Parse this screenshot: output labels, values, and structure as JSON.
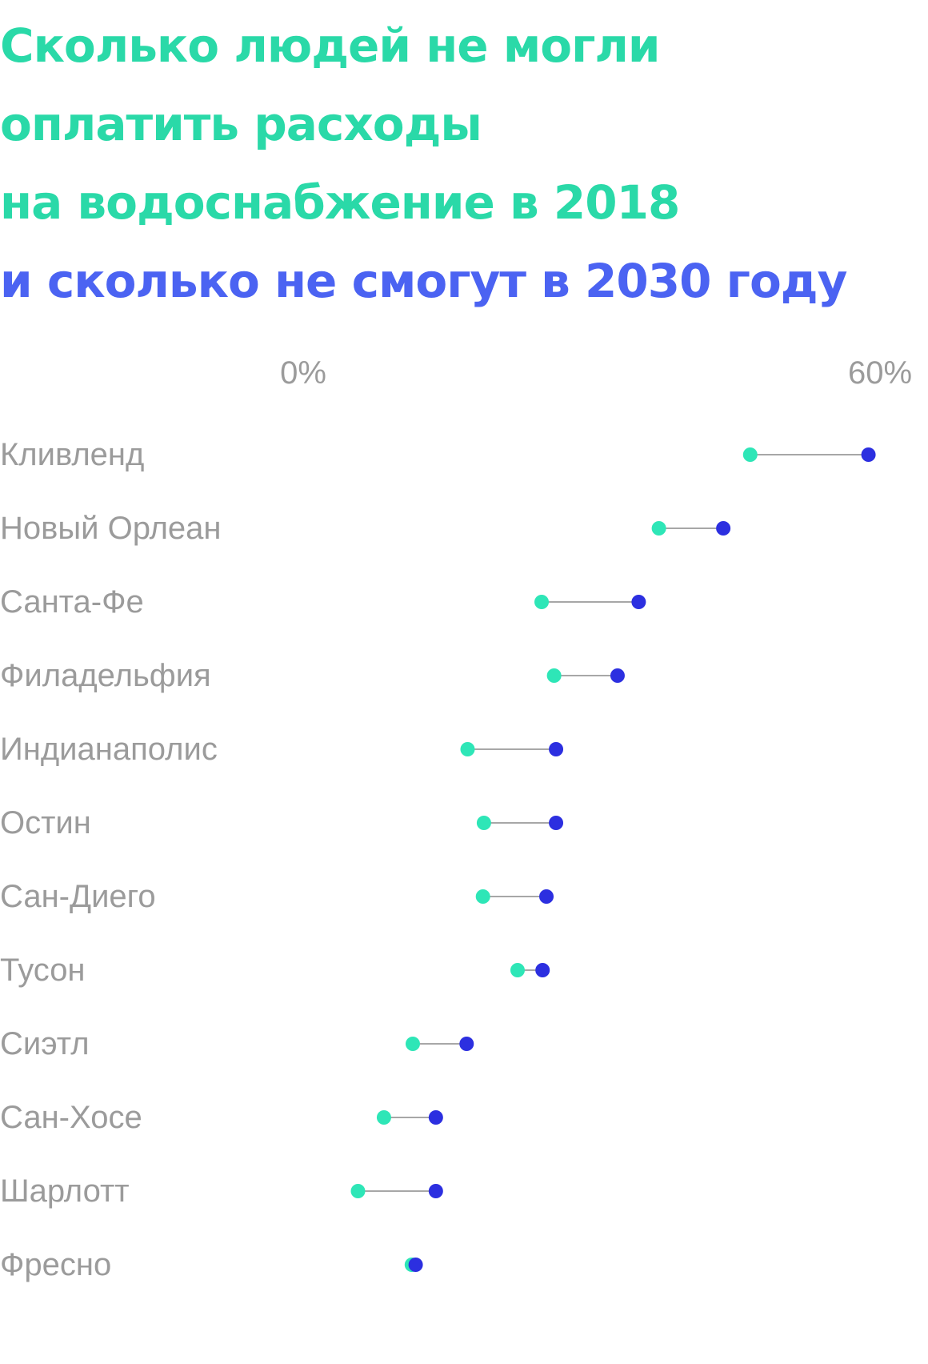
{
  "title": {
    "line1": "Сколько людей не могли",
    "line2": "оплатить расходы",
    "line3": "на водоснабжение в 2018",
    "line4": "и сколько не смогут в 2030 году"
  },
  "colors": {
    "value_2018": "#2ee6b7",
    "value_2030": "#2c2fe0",
    "connector": "#8a8a8a",
    "label": "#9b9b9b",
    "title_2018": "#2ad9a8",
    "title_2030": "#4b63f2"
  },
  "chart_data": {
    "type": "dumbbell",
    "title": "Сколько людей не могли оплатить расходы на водоснабжение в 2018 и сколько не смогут в 2030 году",
    "x_ticks": [
      "0%",
      "60%"
    ],
    "xlim": [
      0,
      60
    ],
    "grid": false,
    "legend": "none",
    "categories": [
      "Кливленд",
      "Новый Орлеан",
      "Санта-Фе",
      "Филадельфия",
      "Индианаполис",
      "Остин",
      "Сан-Диего",
      "Тусон",
      "Сиэтл",
      "Сан-Хосе",
      "Шарлотт",
      "Фресно"
    ],
    "series": [
      {
        "values": [
          46.5,
          37.0,
          24.8,
          26.1,
          17.1,
          18.8,
          18.7,
          22.3,
          11.4,
          8.4,
          5.7,
          11.3
        ]
      },
      {
        "values": [
          58.8,
          43.7,
          34.9,
          32.7,
          26.3,
          26.3,
          25.3,
          24.9,
          17.0,
          13.8,
          13.8,
          11.7
        ]
      }
    ]
  }
}
